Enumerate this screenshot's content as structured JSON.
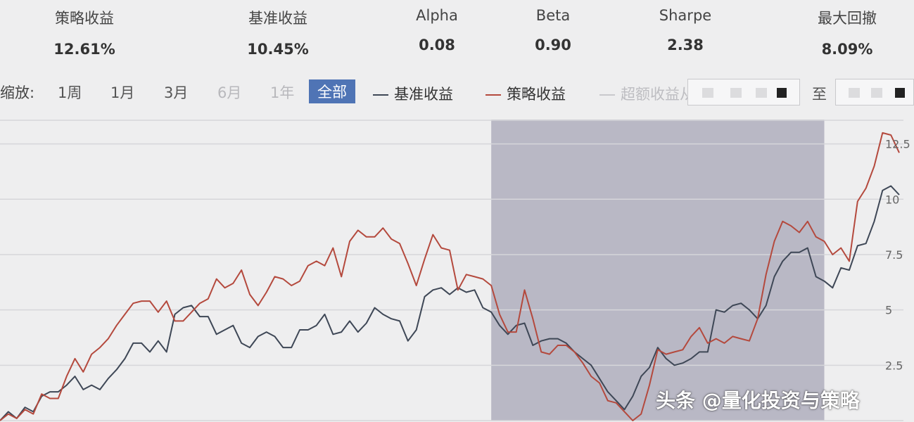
{
  "stats": [
    {
      "label": "策略收益",
      "value": "12.61%"
    },
    {
      "label": "基准收益",
      "value": "10.45%"
    },
    {
      "label": "Alpha",
      "value": "0.08"
    },
    {
      "label": "Beta",
      "value": "0.90"
    },
    {
      "label": "Sharpe",
      "value": "2.38"
    },
    {
      "label": "最大回撤",
      "value": "8.09%"
    }
  ],
  "controls": {
    "zoom_label": "缩放:",
    "zoom_options": [
      "1周",
      "1月",
      "3月",
      "6月",
      "1年",
      "全部"
    ],
    "active_zoom": "全部",
    "disabled_zooms": [
      "6月",
      "1年"
    ],
    "legend": [
      {
        "label": "基准收益",
        "color": "#3e4756"
      },
      {
        "label": "策略收益",
        "color": "#b4493d"
      },
      {
        "label": "超额收益",
        "color": "#c8c8cc"
      }
    ],
    "from_label": "从",
    "to_label": "至"
  },
  "chart_data": {
    "type": "line",
    "y_ticks": [
      "2.5",
      "5",
      "7.5",
      "10",
      "12.5"
    ],
    "ylim": [
      0,
      13.6
    ],
    "grid": true,
    "legend_position": "top",
    "highlight_range": [
      59,
      99
    ],
    "series": [
      {
        "name": "基准收益",
        "color": "#3e4756",
        "values": [
          0.0,
          0.4,
          0.1,
          0.6,
          0.4,
          1.1,
          1.3,
          1.3,
          1.6,
          2.0,
          1.4,
          1.6,
          1.4,
          1.9,
          2.3,
          2.8,
          3.5,
          3.5,
          3.1,
          3.6,
          3.1,
          4.8,
          5.1,
          5.2,
          4.7,
          4.7,
          3.9,
          4.1,
          4.3,
          3.5,
          3.3,
          3.8,
          4.0,
          3.8,
          3.3,
          3.3,
          4.1,
          4.1,
          4.3,
          4.8,
          3.9,
          4.0,
          4.5,
          4.0,
          4.4,
          5.1,
          4.8,
          4.6,
          4.5,
          3.6,
          4.1,
          5.6,
          5.9,
          6.0,
          5.7,
          6.0,
          5.8,
          5.9,
          5.1,
          4.9,
          4.3,
          3.9,
          4.3,
          4.4,
          3.4,
          3.6,
          3.7,
          3.7,
          3.5,
          3.1,
          2.8,
          2.5,
          1.9,
          1.3,
          0.9,
          0.5,
          1.1,
          2.0,
          2.4,
          3.3,
          2.8,
          2.5,
          2.6,
          2.8,
          3.1,
          3.1,
          5.0,
          4.9,
          5.2,
          5.3,
          5.0,
          4.6,
          5.2,
          6.5,
          7.2,
          7.6,
          7.6,
          7.8,
          6.5,
          6.3,
          6.0,
          6.9,
          6.8,
          7.9,
          8.0,
          9.0,
          10.4,
          10.6,
          10.2
        ]
      },
      {
        "name": "策略收益",
        "color": "#b4493d",
        "values": [
          0.0,
          0.3,
          0.1,
          0.5,
          0.3,
          1.2,
          1.0,
          1.0,
          2.0,
          2.8,
          2.2,
          3.0,
          3.3,
          3.7,
          4.3,
          4.8,
          5.3,
          5.4,
          5.4,
          4.9,
          5.4,
          4.5,
          4.5,
          4.9,
          5.3,
          5.5,
          6.4,
          6.0,
          6.2,
          6.8,
          5.7,
          5.2,
          5.8,
          6.5,
          6.4,
          6.1,
          6.3,
          7.0,
          7.2,
          7.0,
          7.8,
          6.5,
          8.1,
          8.6,
          8.3,
          8.3,
          8.7,
          8.2,
          8.0,
          7.1,
          6.1,
          7.3,
          8.4,
          7.8,
          7.7,
          5.9,
          6.6,
          6.5,
          6.4,
          6.1,
          4.8,
          4.0,
          4.0,
          5.9,
          4.6,
          3.1,
          3.0,
          3.4,
          3.4,
          3.1,
          2.6,
          2.0,
          1.7,
          0.9,
          0.8,
          0.4,
          0.0,
          0.3,
          1.6,
          3.2,
          3.0,
          3.1,
          3.2,
          3.8,
          4.2,
          3.5,
          3.7,
          3.5,
          3.8,
          3.7,
          3.6,
          4.6,
          6.6,
          8.1,
          9.0,
          8.8,
          8.5,
          9.0,
          8.3,
          8.1,
          7.5,
          7.8,
          7.2,
          9.9,
          10.5,
          11.5,
          13.0,
          12.9,
          12.1
        ]
      }
    ]
  },
  "watermark": "头条 @量化投资与策略"
}
